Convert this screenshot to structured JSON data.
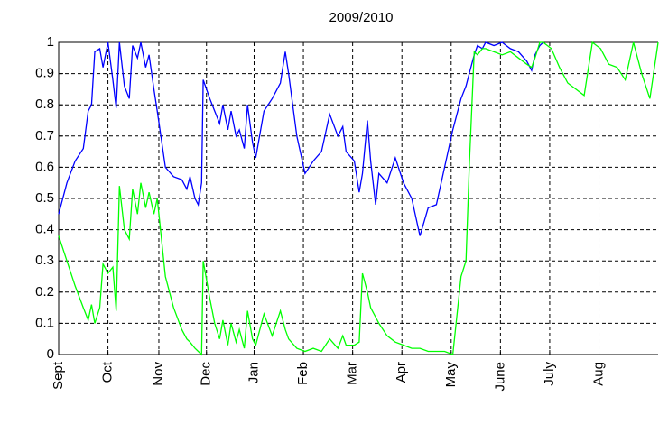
{
  "chart_data": {
    "type": "line",
    "title": "2009/2010",
    "x": [
      0,
      5,
      10,
      15,
      18,
      20,
      22,
      25,
      27,
      30,
      33,
      35,
      37,
      40,
      43,
      45,
      48,
      50,
      53,
      55,
      58,
      60,
      65,
      70,
      75,
      78,
      80,
      83,
      85,
      87,
      88,
      92,
      95,
      98,
      100,
      103,
      105,
      108,
      110,
      113,
      115,
      118,
      120,
      125,
      130,
      135,
      138,
      140,
      145,
      150,
      155,
      160,
      165,
      170,
      173,
      175,
      180,
      183,
      185,
      188,
      190,
      193,
      195,
      200,
      205,
      210,
      215,
      220,
      225,
      230,
      235,
      240,
      245,
      248,
      250,
      253,
      255,
      258,
      260,
      265,
      270,
      275,
      280,
      285,
      288,
      290,
      293,
      295,
      300,
      305,
      310,
      315,
      320,
      325,
      330,
      335,
      340,
      345,
      350,
      355,
      360,
      365
    ],
    "series": [
      {
        "color": "#0000ff",
        "values": [
          0.45,
          0.55,
          0.62,
          0.66,
          0.78,
          0.8,
          0.97,
          0.98,
          0.92,
          1,
          0.88,
          0.79,
          1,
          0.86,
          0.82,
          0.99,
          0.95,
          1,
          0.92,
          0.96,
          0.85,
          0.78,
          0.6,
          0.57,
          0.56,
          0.53,
          0.57,
          0.5,
          0.48,
          0.55,
          0.88,
          0.82,
          0.78,
          0.74,
          0.8,
          0.72,
          0.78,
          0.7,
          0.72,
          0.66,
          0.8,
          0.68,
          0.63,
          0.78,
          0.82,
          0.87,
          0.97,
          0.9,
          0.7,
          0.58,
          0.62,
          0.65,
          0.77,
          0.7,
          0.73,
          0.65,
          0.62,
          0.52,
          0.58,
          0.75,
          0.62,
          0.48,
          0.58,
          0.55,
          0.63,
          0.55,
          0.5,
          0.38,
          0.47,
          0.48,
          0.6,
          0.72,
          0.82,
          0.86,
          0.9,
          0.96,
          0.99,
          0.98,
          1,
          0.99,
          1,
          0.98,
          0.97,
          0.94,
          0.91,
          0.96,
          0.99,
          1,
          null,
          null,
          null,
          null,
          null,
          null,
          null,
          null,
          null,
          null,
          null,
          null,
          null,
          null
        ]
      },
      {
        "color": "#00ff00",
        "values": [
          0.38,
          0.3,
          0.22,
          0.15,
          0.11,
          0.16,
          0.1,
          0.15,
          0.29,
          0.26,
          0.28,
          0.14,
          0.54,
          0.4,
          0.37,
          0.53,
          0.45,
          0.55,
          0.47,
          0.52,
          0.45,
          0.5,
          0.25,
          0.15,
          0.08,
          0.05,
          0.04,
          0.02,
          0.01,
          0,
          0.3,
          0.18,
          0.1,
          0.05,
          0.11,
          0.03,
          0.1,
          0.04,
          0.08,
          0.02,
          0.14,
          0.05,
          0.03,
          0.13,
          0.06,
          0.14,
          0.08,
          0.05,
          0.02,
          0.01,
          0.02,
          0.01,
          0.05,
          0.02,
          0.06,
          0.03,
          0.03,
          0.04,
          0.26,
          0.2,
          0.15,
          0.12,
          0.1,
          0.06,
          0.04,
          0.03,
          0.02,
          0.02,
          0.01,
          0.01,
          0.01,
          0,
          0.25,
          0.3,
          0.6,
          0.97,
          0.96,
          0.98,
          0.98,
          0.97,
          0.96,
          0.97,
          0.95,
          0.93,
          0.92,
          0.95,
          1,
          1,
          0.98,
          0.92,
          0.87,
          0.85,
          0.83,
          1,
          0.98,
          0.93,
          0.92,
          0.88,
          1,
          0.9,
          0.82,
          1
        ]
      }
    ],
    "xlim": [
      0,
      365
    ],
    "xticks": [
      {
        "value": 0,
        "label": "Sept"
      },
      {
        "value": 30,
        "label": "Oct"
      },
      {
        "value": 61,
        "label": "Nov"
      },
      {
        "value": 90,
        "label": "Dec"
      },
      {
        "value": 119,
        "label": "Jan"
      },
      {
        "value": 149,
        "label": "Feb"
      },
      {
        "value": 179,
        "label": "Mar"
      },
      {
        "value": 209,
        "label": "Apr"
      },
      {
        "value": 239,
        "label": "May"
      },
      {
        "value": 269,
        "label": "June"
      },
      {
        "value": 299,
        "label": "July"
      },
      {
        "value": 329,
        "label": "Aug"
      }
    ],
    "ylim": [
      0,
      1
    ],
    "yticks": [
      0,
      0.1,
      0.2,
      0.3,
      0.4,
      0.5,
      0.6,
      0.7,
      0.8,
      0.9,
      1
    ],
    "grid": true
  }
}
